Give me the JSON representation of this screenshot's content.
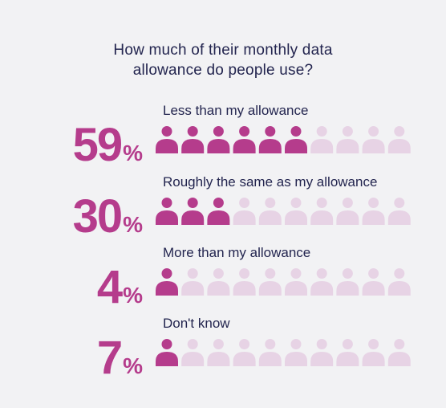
{
  "colors": {
    "active": "#b53c8c",
    "inactive": "#e7d3e5",
    "text": "#23254f",
    "background": "#f2f2f4"
  },
  "chart_data": {
    "type": "pictogram",
    "title_line1": "How much of their monthly data",
    "title_line2": "allowance do people use?",
    "icons_per_row": 10,
    "unit_symbol": "%",
    "categories": [
      "Less than my allowance",
      "Roughly the same as my allowance",
      "More than my allowance",
      "Don't know"
    ],
    "values": [
      59,
      30,
      4,
      7
    ],
    "display_values": [
      "59",
      "30",
      "4",
      "7"
    ],
    "filled_icons": [
      6,
      3,
      1,
      1
    ]
  }
}
